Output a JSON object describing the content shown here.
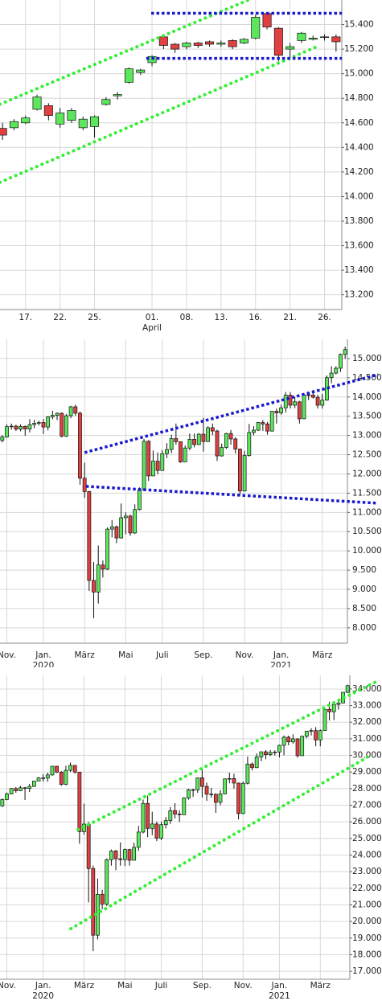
{
  "chart_data": [
    {
      "type": "candlestick",
      "up_color": "#5ce65c",
      "down_color": "#e04040",
      "grid": true,
      "categories": [
        null,
        null,
        "17.",
        null,
        null,
        "22.",
        null,
        null,
        "25.",
        null,
        null,
        null,
        null,
        "01.\nApril",
        null,
        null,
        "08.",
        null,
        null,
        "13.",
        null,
        null,
        "16.",
        null,
        null,
        "21.",
        null,
        null,
        "26.",
        null
      ],
      "open": [
        14555,
        14560,
        14600,
        14710,
        14740,
        14590,
        14620,
        14560,
        14570,
        14750,
        14820,
        14930,
        15010,
        15090,
        15300,
        15240,
        15220,
        15250,
        15260,
        15240,
        15270,
        15250,
        15290,
        15490,
        15370,
        15200,
        15270,
        15280,
        15300,
        15300
      ],
      "high": [
        14600,
        14630,
        14660,
        14830,
        14760,
        14720,
        14720,
        14650,
        14660,
        14810,
        14850,
        15050,
        15040,
        15150,
        15320,
        15250,
        15260,
        15260,
        15270,
        15270,
        15280,
        15290,
        15480,
        15500,
        15380,
        15250,
        15340,
        15310,
        15320,
        15320
      ],
      "low": [
        14460,
        14540,
        14590,
        14700,
        14620,
        14560,
        14600,
        14540,
        14480,
        14740,
        14790,
        14920,
        14990,
        15060,
        15200,
        15170,
        15200,
        15210,
        15220,
        15220,
        15200,
        15240,
        15280,
        15360,
        15100,
        15120,
        15250,
        15270,
        15270,
        15180
      ],
      "close": [
        14500,
        14610,
        14640,
        14810,
        14660,
        14680,
        14700,
        14630,
        14650,
        14790,
        14830,
        15040,
        15030,
        15140,
        15230,
        15200,
        15250,
        15230,
        15240,
        15250,
        15220,
        15280,
        15460,
        15380,
        15150,
        15220,
        15330,
        15290,
        15300,
        15260
      ],
      "ylim": [
        13080,
        15600
      ],
      "yticks": [
        {
          "value": 13200,
          "label": "13.200"
        },
        {
          "value": 13400,
          "label": "13.400"
        },
        {
          "value": 13600,
          "label": "13.600"
        },
        {
          "value": 13800,
          "label": "13.800"
        },
        {
          "value": 14000,
          "label": "14.000"
        },
        {
          "value": 14200,
          "label": "14.200"
        },
        {
          "value": 14400,
          "label": "14.400"
        },
        {
          "value": 14600,
          "label": "14.600"
        },
        {
          "value": 14800,
          "label": "14.800"
        },
        {
          "value": 15000,
          "label": "15.000"
        },
        {
          "value": 15200,
          "label": "15.200"
        },
        {
          "value": 15400,
          "label": "15.400"
        }
      ],
      "lines": [
        {
          "from": [
            -0.22,
            14752
          ],
          "to": [
            21.46,
            15603
          ],
          "color": "#33ee33",
          "style": "dots"
        },
        {
          "from": [
            -0.22,
            14116
          ],
          "to": [
            27.4,
            15223
          ],
          "color": "#33ee33",
          "style": "dots"
        },
        {
          "from": [
            12.93,
            15492
          ],
          "to": [
            29.5,
            15492
          ],
          "color": "#1a1acc",
          "style": "dash"
        },
        {
          "from": [
            12.5,
            15125
          ],
          "to": [
            29.5,
            15125
          ],
          "color": "#1a1acc",
          "style": "dash"
        }
      ]
    },
    {
      "type": "candlestick",
      "up_color": "#5ce65c",
      "down_color": "#e04040",
      "grid": true,
      "categories": [
        null,
        "Nov.",
        null,
        null,
        null,
        null,
        null,
        null,
        null,
        "Jan.\n2020",
        null,
        null,
        null,
        null,
        null,
        null,
        null,
        null,
        "März",
        null,
        null,
        null,
        null,
        null,
        null,
        null,
        null,
        "Mai",
        null,
        null,
        null,
        null,
        null,
        null,
        null,
        "Juli",
        null,
        null,
        null,
        null,
        null,
        null,
        null,
        null,
        "Sep.",
        null,
        null,
        null,
        null,
        null,
        null,
        null,
        null,
        "Nov.",
        null,
        null,
        null,
        null,
        null,
        null,
        null,
        "Jan.\n2021",
        null,
        null,
        null,
        null,
        null,
        null,
        null,
        null,
        "März",
        null,
        null,
        null,
        null,
        null
      ],
      "open": [
        12870,
        12961,
        13229,
        13242,
        13164,
        13236,
        13167,
        13283,
        13319,
        13337,
        13219,
        13483,
        13526,
        13577,
        12982,
        13514,
        13745,
        13579,
        11890,
        11542,
        9232,
        8929,
        9633,
        9525,
        10565,
        10626,
        10336,
        10861,
        10904,
        10465,
        11074,
        11587,
        12848,
        11949,
        12331,
        12089,
        12528,
        12634,
        12920,
        12839,
        12313,
        12674,
        12901,
        12764,
        13033,
        12842,
        13202,
        13116,
        12469,
        12689,
        13051,
        12909,
        12646,
        11556,
        12480,
        13077,
        13137,
        13336,
        13299,
        13114,
        13630,
        13587,
        13719,
        14049,
        13787,
        13874,
        13433,
        14056,
        14050,
        13993,
        13786,
        13920,
        14502,
        14621,
        14748,
        15107
      ],
      "high": [
        13010,
        13290,
        13310,
        13280,
        13290,
        13260,
        13425,
        13410,
        13380,
        13430,
        13500,
        13640,
        13600,
        13600,
        13560,
        13770,
        13800,
        13620,
        12290,
        11560,
        9710,
        10140,
        9750,
        10610,
        10800,
        10660,
        11230,
        11000,
        10950,
        11210,
        11650,
        12910,
        12880,
        12610,
        12560,
        12620,
        12800,
        13020,
        13310,
        12840,
        12740,
        13050,
        13050,
        13060,
        13460,
        13240,
        13310,
        13150,
        12790,
        13070,
        13140,
        12950,
        12660,
        12600,
        13300,
        13240,
        13350,
        13400,
        13350,
        13640,
        13700,
        13800,
        14130,
        14130,
        14000,
        13900,
        14070,
        14100,
        14180,
        14060,
        14080,
        14560,
        14800,
        14800,
        15130,
        15310
      ],
      "low": [
        12820,
        12940,
        13150,
        13120,
        13110,
        12990,
        13080,
        13190,
        13260,
        13040,
        13130,
        13420,
        13400,
        12950,
        12960,
        13450,
        13510,
        11720,
        11380,
        8960,
        8250,
        8630,
        9310,
        9500,
        10350,
        10200,
        10320,
        10430,
        10390,
        10440,
        11050,
        11550,
        11820,
        11940,
        11990,
        12080,
        12410,
        12540,
        12760,
        12290,
        12310,
        12620,
        12690,
        12750,
        12580,
        12830,
        13010,
        12340,
        12450,
        12650,
        12760,
        12530,
        11450,
        11540,
        12450,
        13000,
        13120,
        13120,
        13020,
        13100,
        13310,
        13540,
        13600,
        13700,
        13710,
        13310,
        13430,
        13920,
        13960,
        13700,
        13700,
        13900,
        14360,
        14590,
        14650,
        14990
      ],
      "close": [
        12961,
        13229,
        13242,
        13164,
        13236,
        13167,
        13283,
        13319,
        13337,
        13219,
        13483,
        13526,
        13577,
        12982,
        13514,
        13745,
        13579,
        11890,
        11542,
        9232,
        8929,
        9633,
        9525,
        10565,
        10626,
        10336,
        10861,
        10904,
        10465,
        11074,
        11587,
        12848,
        11949,
        12331,
        12089,
        12528,
        12634,
        12920,
        12839,
        12313,
        12674,
        12901,
        12764,
        13033,
        12842,
        13202,
        13116,
        12469,
        12689,
        13051,
        12909,
        12646,
        11556,
        12480,
        13077,
        13137,
        13336,
        13299,
        13114,
        13630,
        13587,
        13719,
        14049,
        13787,
        13874,
        13433,
        14056,
        14050,
        13993,
        13786,
        13920,
        14502,
        14621,
        14748,
        15107,
        15234
      ],
      "ylim": [
        7600,
        15500
      ],
      "yticks": [
        {
          "value": 8000,
          "label": "8.000"
        },
        {
          "value": 8500,
          "label": "8.500"
        },
        {
          "value": 9000,
          "label": "9.000"
        },
        {
          "value": 9500,
          "label": "9.500"
        },
        {
          "value": 10000,
          "label": "10.000"
        },
        {
          "value": 10500,
          "label": "10.500"
        },
        {
          "value": 11000,
          "label": "11.000"
        },
        {
          "value": 11500,
          "label": "11.500"
        },
        {
          "value": 12000,
          "label": "12.000"
        },
        {
          "value": 12500,
          "label": "12.500"
        },
        {
          "value": 13000,
          "label": "13.000"
        },
        {
          "value": 13500,
          "label": "13.500"
        },
        {
          "value": 14000,
          "label": "14.000"
        },
        {
          "value": 14500,
          "label": "14.500"
        },
        {
          "value": 15000,
          "label": "15.000"
        }
      ],
      "lines": [
        {
          "from": [
            18.0,
            12555
          ],
          "to": [
            82.2,
            14582
          ],
          "color": "#1a1acc",
          "style": "dash"
        },
        {
          "from": [
            18.3,
            11678
          ],
          "to": [
            82.2,
            11239
          ],
          "color": "#1a1acc",
          "style": "dash"
        }
      ]
    },
    {
      "type": "candlestick",
      "up_color": "#5ce65c",
      "down_color": "#e04040",
      "grid": true,
      "categories": [
        null,
        "Nov.",
        null,
        null,
        null,
        null,
        null,
        null,
        null,
        "Jan.\n2020",
        null,
        null,
        null,
        null,
        null,
        null,
        null,
        null,
        "März",
        null,
        null,
        null,
        null,
        null,
        null,
        null,
        null,
        "Mai",
        null,
        null,
        null,
        null,
        null,
        null,
        null,
        "Juli",
        null,
        null,
        null,
        null,
        null,
        null,
        null,
        null,
        "Sep.",
        null,
        null,
        null,
        null,
        null,
        null,
        null,
        null,
        "Nov.",
        null,
        null,
        null,
        null,
        null,
        null,
        null,
        "Jan.\n2021",
        null,
        null,
        null,
        null,
        null,
        null,
        null,
        null,
        "März",
        null,
        null,
        null,
        null,
        null,
        null
      ],
      "open": [
        26960,
        27347,
        27681,
        28005,
        27876,
        28051,
        28015,
        28135,
        28455,
        28645,
        28634,
        28824,
        29348,
        28990,
        28256,
        29103,
        29398,
        28992,
        25409,
        25865,
        23186,
        19174,
        21637,
        21053,
        23719,
        24242,
        23775,
        23724,
        24331,
        23685,
        24465,
        25383,
        27111,
        25606,
        25871,
        25016,
        25827,
        26075,
        26672,
        26470,
        26428,
        27433,
        27931,
        27930,
        28654,
        28133,
        27666,
        27657,
        27174,
        27683,
        28587,
        28606,
        28336,
        26502,
        28323,
        29480,
        29263,
        29910,
        30218,
        30046,
        30179,
        30200,
        30606,
        31098,
        30814,
        30997,
        29983,
        31148,
        31458,
        31494,
        30932,
        31496,
        32779,
        32628,
        33073,
        33153,
        33801
      ],
      "high": [
        27400,
        27770,
        28040,
        28090,
        28170,
        28100,
        28290,
        28460,
        28700,
        28870,
        28960,
        29370,
        29370,
        29060,
        29370,
        29570,
        29410,
        29000,
        27100,
        26000,
        23370,
        22590,
        21900,
        23800,
        24330,
        24310,
        24760,
        24390,
        24380,
        24750,
        25760,
        27340,
        27580,
        26610,
        26020,
        26020,
        26290,
        26890,
        27120,
        26700,
        27480,
        28000,
        28000,
        28660,
        29200,
        28360,
        28050,
        27720,
        27900,
        28610,
        28960,
        28900,
        28350,
        28420,
        29930,
        29580,
        30120,
        30230,
        30320,
        30330,
        30310,
        30640,
        31200,
        31190,
        31270,
        31030,
        31200,
        31480,
        31640,
        31700,
        31560,
        32790,
        33230,
        33260,
        33260,
        33810,
        34260
      ],
      "low": [
        26900,
        27300,
        27660,
        27750,
        27860,
        27320,
        27800,
        28100,
        28450,
        28420,
        28420,
        28780,
        28940,
        28170,
        28200,
        29000,
        28900,
        24680,
        25230,
        21150,
        18210,
        18920,
        20730,
        20930,
        23360,
        23090,
        23360,
        23340,
        23360,
        23680,
        24250,
        25300,
        25080,
        25200,
        24840,
        24900,
        25600,
        25880,
        26200,
        25990,
        26420,
        27340,
        27500,
        27750,
        27460,
        27260,
        27450,
        26540,
        26990,
        27660,
        28320,
        28000,
        26140,
        26460,
        28250,
        29100,
        29240,
        29650,
        29770,
        29960,
        29990,
        29880,
        30010,
        30610,
        30710,
        29860,
        29980,
        31040,
        31200,
        30550,
        30550,
        31490,
        32100,
        32130,
        32760,
        33140,
        33750
      ],
      "close": [
        27347,
        27681,
        28005,
        27876,
        28051,
        28015,
        28135,
        28455,
        28645,
        28634,
        28824,
        29348,
        28990,
        28256,
        29103,
        29398,
        28992,
        25409,
        25865,
        23186,
        19174,
        21637,
        21053,
        23719,
        24242,
        23775,
        23724,
        24331,
        23685,
        24465,
        25383,
        27111,
        25606,
        25871,
        25016,
        25827,
        26075,
        26672,
        26470,
        26428,
        27433,
        27931,
        27930,
        28654,
        28133,
        27666,
        27657,
        27174,
        27683,
        28587,
        28606,
        28336,
        26502,
        28323,
        29480,
        29263,
        29910,
        30218,
        30046,
        30179,
        30200,
        30606,
        31098,
        30814,
        30997,
        29983,
        31148,
        31458,
        31494,
        30932,
        31496,
        32779,
        32628,
        33073,
        33153,
        33801,
        34200
      ],
      "ylim": [
        16520,
        34820
      ],
      "yticks": [
        {
          "value": 17000,
          "label": "17.000"
        },
        {
          "value": 18000,
          "label": "18.000"
        },
        {
          "value": 19000,
          "label": "19.000"
        },
        {
          "value": 20000,
          "label": "20.000"
        },
        {
          "value": 21000,
          "label": "21.000"
        },
        {
          "value": 22000,
          "label": "22.000"
        },
        {
          "value": 23000,
          "label": "23.000"
        },
        {
          "value": 24000,
          "label": "24.000"
        },
        {
          "value": 25000,
          "label": "25.000"
        },
        {
          "value": 26000,
          "label": "26.000"
        },
        {
          "value": 27000,
          "label": "27.000"
        },
        {
          "value": 28000,
          "label": "28.000"
        },
        {
          "value": 29000,
          "label": "29.000"
        },
        {
          "value": 30000,
          "label": "30.000"
        },
        {
          "value": 31000,
          "label": "31.000"
        },
        {
          "value": 32000,
          "label": "32.000"
        },
        {
          "value": 33000,
          "label": "33.000"
        },
        {
          "value": 34000,
          "label": "34.000"
        }
      ],
      "lines": [
        {
          "from": [
            16.7,
            25525
          ],
          "to": [
            82.3,
            34436
          ],
          "color": "#33ee33",
          "style": "dots"
        },
        {
          "from": [
            15.1,
            19569
          ],
          "to": [
            80.9,
            29980
          ],
          "color": "#33ee33",
          "style": "dots"
        }
      ]
    }
  ]
}
